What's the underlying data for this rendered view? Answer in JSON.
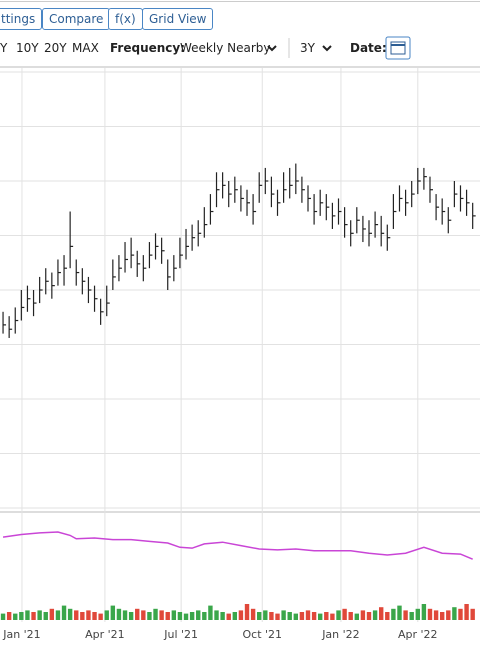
{
  "toolbar": {
    "buttons": [
      "ttings",
      "Compare",
      "f(x)",
      "Grid View"
    ],
    "periods": [
      "Y",
      "10Y",
      "20Y",
      "MAX"
    ],
    "frequency_label": "Frequency:",
    "frequency": "Weekly Nearby",
    "range": "3Y",
    "date_label": "Date:"
  },
  "chart_data": [
    {
      "type": "ohlc",
      "color": "#222222",
      "grid": true,
      "x": [
        0,
        1,
        2,
        3,
        4,
        5,
        6,
        7,
        8,
        9,
        10,
        11,
        12,
        13,
        14,
        15,
        16,
        17,
        18,
        19,
        20,
        21,
        22,
        23,
        24,
        25,
        26,
        27,
        28,
        29,
        30,
        31,
        32,
        33,
        34,
        35,
        36,
        37,
        38,
        39,
        40,
        41,
        42,
        43,
        44,
        45,
        46,
        47,
        48,
        49,
        50,
        51,
        52,
        53,
        54,
        55,
        56,
        57,
        58,
        59,
        60,
        61,
        62,
        63,
        64,
        65,
        66,
        67,
        68,
        69,
        70,
        71,
        72,
        73,
        74,
        75,
        76,
        77
      ],
      "high": [
        45,
        44,
        46,
        50,
        51,
        50,
        53,
        55,
        54,
        57,
        58,
        68,
        57,
        55,
        53,
        51,
        48,
        51,
        57,
        58,
        61,
        62,
        59,
        58,
        61,
        63,
        62,
        57,
        58,
        62,
        64,
        65,
        66,
        69,
        72,
        77,
        77,
        75,
        76,
        74,
        73,
        72,
        77,
        78,
        76,
        73,
        77,
        78,
        79,
        76,
        74,
        72,
        73,
        72,
        70,
        71,
        69,
        66,
        69,
        67,
        66,
        68,
        67,
        65,
        72,
        74,
        73,
        75,
        78,
        78,
        76,
        72,
        71,
        69,
        75,
        74,
        73,
        70
      ],
      "low": [
        40,
        39,
        40,
        43,
        45,
        44,
        47,
        49,
        48,
        51,
        51,
        55,
        51,
        49,
        47,
        45,
        42,
        44,
        50,
        52,
        54,
        55,
        53,
        52,
        55,
        57,
        56,
        50,
        52,
        55,
        57,
        59,
        60,
        62,
        65,
        69,
        71,
        69,
        70,
        68,
        67,
        65,
        70,
        72,
        69,
        67,
        70,
        71,
        72,
        70,
        68,
        65,
        67,
        66,
        64,
        65,
        62,
        60,
        63,
        61,
        60,
        62,
        60,
        59,
        64,
        68,
        67,
        69,
        72,
        73,
        70,
        66,
        65,
        63,
        69,
        68,
        67,
        64
      ],
      "close": [
        42,
        41,
        43,
        46,
        48,
        47,
        50,
        52,
        51,
        54,
        55,
        60,
        54,
        52,
        50,
        48,
        45,
        47,
        53,
        55,
        57,
        58,
        56,
        55,
        58,
        60,
        59,
        53,
        55,
        58,
        60,
        62,
        63,
        65,
        68,
        73,
        74,
        72,
        73,
        71,
        70,
        68,
        74,
        75,
        72,
        70,
        73,
        74,
        75,
        73,
        71,
        68,
        70,
        69,
        67,
        68,
        65,
        63,
        66,
        64,
        63,
        65,
        63,
        62,
        68,
        71,
        70,
        72,
        75,
        76,
        73,
        69,
        68,
        66,
        72,
        71,
        70,
        67
      ],
      "xlim": [
        -0.5,
        78.2
      ],
      "xticks": [
        {
          "value": 3.1,
          "label": "Jan '21"
        },
        {
          "value": 16.7,
          "label": "Apr '21"
        },
        {
          "value": 29.2,
          "label": "Jul '21"
        },
        {
          "value": 42.5,
          "label": "Oct '21"
        },
        {
          "value": 55.4,
          "label": "Jan '22"
        },
        {
          "value": 68,
          "label": "Apr '22"
        }
      ],
      "ylim": [
        0,
        100
      ],
      "yticks": [
        0,
        12.5,
        25,
        37.5,
        50,
        62.5,
        75,
        87.5,
        100
      ]
    },
    {
      "type": "line",
      "color": "#c945d6",
      "x": [
        0,
        3,
        6,
        9,
        11,
        12,
        15,
        18,
        21,
        24,
        27,
        29,
        31,
        33,
        36,
        39,
        42,
        45,
        48,
        51,
        54,
        57,
        60,
        63,
        66,
        69,
        72,
        75,
        77
      ],
      "values": [
        74,
        77,
        79,
        80,
        76,
        72,
        73,
        71,
        71,
        69,
        67,
        62,
        61,
        66,
        68,
        64,
        60,
        59,
        60,
        58,
        58,
        58,
        55,
        53,
        55,
        62,
        55,
        54,
        48
      ],
      "ylim": [
        0,
        100
      ]
    },
    {
      "type": "bar",
      "colors": {
        "up": "#3aa64a",
        "down": "#e0483a"
      },
      "values": [
        4,
        5,
        4,
        5,
        6,
        5,
        6,
        5,
        7,
        6,
        9,
        7,
        6,
        5,
        6,
        5,
        4,
        6,
        9,
        7,
        6,
        5,
        7,
        6,
        5,
        7,
        6,
        5,
        6,
        5,
        4,
        5,
        6,
        5,
        9,
        6,
        5,
        4,
        5,
        6,
        10,
        7,
        5,
        6,
        5,
        4,
        6,
        5,
        4,
        5,
        6,
        5,
        4,
        5,
        4,
        6,
        7,
        5,
        4,
        6,
        5,
        6,
        8,
        5,
        7,
        9,
        6,
        5,
        7,
        10,
        7,
        6,
        5,
        6,
        8,
        7,
        10,
        7
      ],
      "ylim": [
        0,
        25
      ]
    }
  ]
}
